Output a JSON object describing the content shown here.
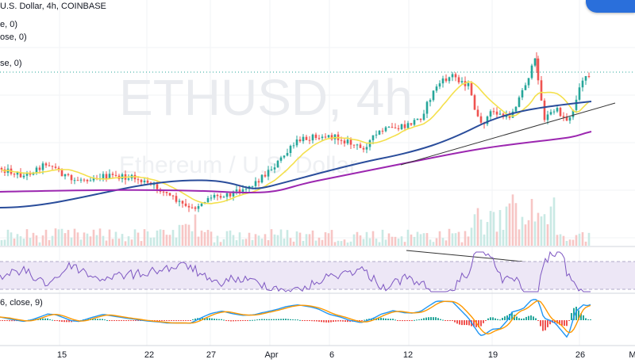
{
  "legend": {
    "symbol_line": "U.S. Dollar, 4h, COINBASE",
    "ma1_line": "e, 0)",
    "ma2_line": "ose, 0)",
    "ma3_line": "se, 0)",
    "macd_line": "6, close, 9)"
  },
  "watermark": {
    "symbol": "ETHUSD, 4h",
    "name": "Ethereum / U.S. Dollar"
  },
  "colors": {
    "up": "#26a69a",
    "down": "#ef5350",
    "ma_fast": "#f4e04d",
    "ma_mid": "#2a4d9b",
    "ma_slow": "#9c27b0",
    "rsi": "#7e57c2",
    "rsi_band": "#ede7f6",
    "macd": "#2196f3",
    "signal": "#ff9800",
    "trendline": "#333333",
    "price_dotted": "#26a69a"
  },
  "chart_data": {
    "type": "candlestick",
    "x_tick_labels": [
      "15",
      "22",
      "27",
      "Apr",
      "6",
      "12",
      "19",
      "26",
      "M"
    ],
    "panels": [
      "price",
      "volume",
      "rsi",
      "macd"
    ],
    "moving_averages": [
      "fast (yellow)",
      "mid (blue)",
      "slow (purple)"
    ],
    "grid": true,
    "notes": "Price series values are relative (no price axis visible); trendline drawn from mid-April lows, RSI descending trendline"
  }
}
